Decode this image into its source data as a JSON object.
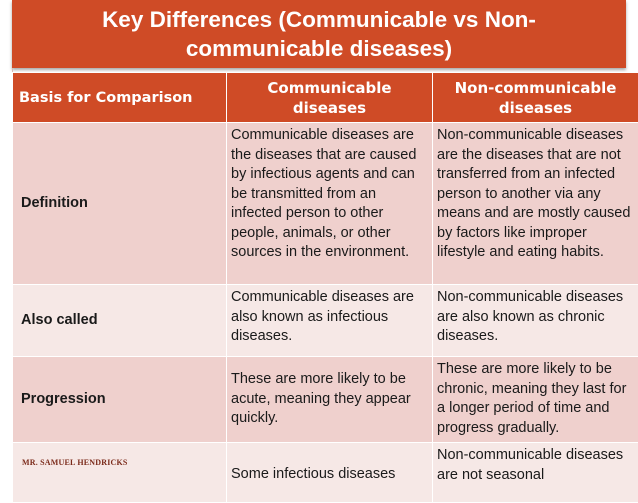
{
  "slide": {
    "title": "Key Differences (Communicable vs Non-communicable diseases)",
    "accent_color": "#cf4b26",
    "footer_mark": "MR. SAMUEL HENDRICKS"
  },
  "table": {
    "headers": [
      "Basis for Comparison",
      "Communicable diseases",
      "Non-communicable diseases"
    ],
    "rows": [
      {
        "basis": "Definition",
        "communicable": "Communicable diseases are the diseases that are caused by infectious agents and can be transmitted from an infected person to other people, animals, or other sources in the environment.",
        "non_communicable": "Non-communicable diseases are the diseases that are not transferred from an infected person to another via any means and are mostly caused by factors like improper lifestyle and eating habits."
      },
      {
        "basis": "Also called",
        "communicable": "Communicable diseases are also known as infectious diseases.",
        "non_communicable": "Non-communicable diseases are also known as chronic diseases."
      },
      {
        "basis": "Progression",
        "communicable": "These are more likely to be acute, meaning they appear quickly.",
        "non_communicable": "These are more likely to be chronic, meaning they last for a longer period of time and progress gradually."
      },
      {
        "basis": "",
        "communicable": "Some infectious diseases",
        "non_communicable": "Non-communicable diseases are not seasonal"
      }
    ]
  }
}
